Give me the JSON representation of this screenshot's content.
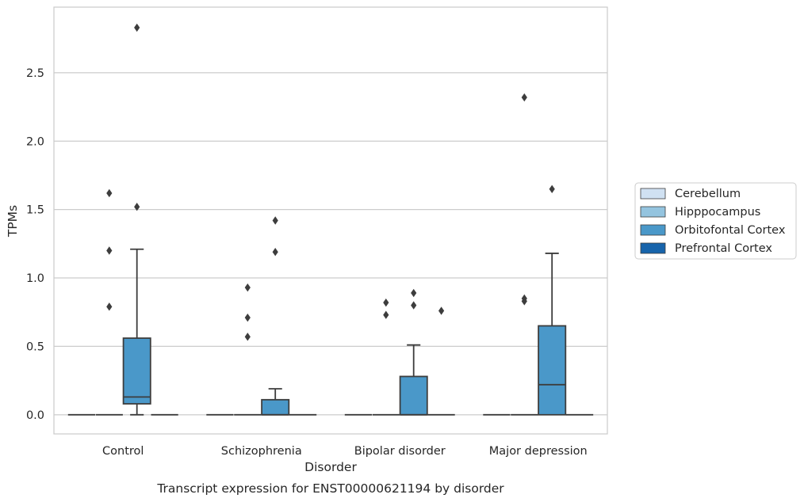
{
  "chart_data": {
    "type": "box",
    "title": "",
    "caption": "Transcript expression for ENST00000621194 by disorder",
    "xlabel": "Disorder",
    "ylabel": "TPMs",
    "ylim": [
      -0.14,
      2.98
    ],
    "yticks": [
      "0.0",
      "0.5",
      "1.0",
      "1.5",
      "2.0",
      "2.5"
    ],
    "grid": true,
    "legend_position": "right",
    "categories": [
      "Control",
      "Schizophrenia",
      "Bipolar disorder",
      "Major depression"
    ],
    "series": [
      {
        "name": "Cerebellum",
        "color": "#d0e1f2",
        "boxes": [
          {
            "q1": 0,
            "median": 0,
            "q3": 0,
            "whisker_low": 0,
            "whisker_high": 0,
            "outliers": []
          },
          {
            "q1": 0,
            "median": 0,
            "q3": 0,
            "whisker_low": 0,
            "whisker_high": 0,
            "outliers": []
          },
          {
            "q1": 0,
            "median": 0,
            "q3": 0,
            "whisker_low": 0,
            "whisker_high": 0,
            "outliers": []
          },
          {
            "q1": 0,
            "median": 0,
            "q3": 0,
            "whisker_low": 0,
            "whisker_high": 0,
            "outliers": []
          }
        ]
      },
      {
        "name": "Hipppocampus",
        "color": "#94c4df",
        "boxes": [
          {
            "q1": 0,
            "median": 0,
            "q3": 0,
            "whisker_low": 0,
            "whisker_high": 0,
            "outliers": [
              0.79,
              1.2,
              1.62
            ]
          },
          {
            "q1": 0,
            "median": 0,
            "q3": 0,
            "whisker_low": 0,
            "whisker_high": 0,
            "outliers": [
              0.57,
              0.71,
              0.93
            ]
          },
          {
            "q1": 0,
            "median": 0,
            "q3": 0,
            "whisker_low": 0,
            "whisker_high": 0,
            "outliers": [
              0.73,
              0.82
            ]
          },
          {
            "q1": 0,
            "median": 0,
            "q3": 0,
            "whisker_low": 0,
            "whisker_high": 0,
            "outliers": [
              0.83,
              0.85,
              2.32
            ]
          }
        ]
      },
      {
        "name": "Orbitofontal Cortex",
        "color": "#4a98c9",
        "boxes": [
          {
            "q1": 0.08,
            "median": 0.13,
            "q3": 0.56,
            "whisker_low": 0,
            "whisker_high": 1.21,
            "outliers": [
              1.52,
              2.83
            ]
          },
          {
            "q1": 0,
            "median": 0,
            "q3": 0.11,
            "whisker_low": 0,
            "whisker_high": 0.19,
            "outliers": [
              1.19,
              1.42
            ]
          },
          {
            "q1": 0,
            "median": 0,
            "q3": 0.28,
            "whisker_low": 0,
            "whisker_high": 0.51,
            "outliers": [
              0.8,
              0.89
            ]
          },
          {
            "q1": 0,
            "median": 0.22,
            "q3": 0.65,
            "whisker_low": 0,
            "whisker_high": 1.18,
            "outliers": [
              1.65
            ]
          }
        ]
      },
      {
        "name": "Prefrontal Cortex",
        "color": "#1764ab",
        "boxes": [
          {
            "q1": 0,
            "median": 0,
            "q3": 0,
            "whisker_low": 0,
            "whisker_high": 0,
            "outliers": []
          },
          {
            "q1": 0,
            "median": 0,
            "q3": 0,
            "whisker_low": 0,
            "whisker_high": 0,
            "outliers": []
          },
          {
            "q1": 0,
            "median": 0,
            "q3": 0,
            "whisker_low": 0,
            "whisker_high": 0,
            "outliers": [
              0.76
            ]
          },
          {
            "q1": 0,
            "median": 0,
            "q3": 0,
            "whisker_low": 0,
            "whisker_high": 0,
            "outliers": []
          }
        ]
      }
    ]
  }
}
